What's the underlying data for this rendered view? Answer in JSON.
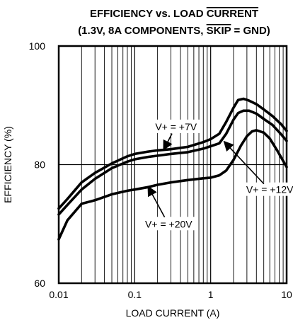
{
  "chart_data": {
    "type": "line",
    "title": {
      "line1_pre": "EFFICIENCY vs. LOAD ",
      "line1_over": "CURRENT",
      "line2_pre": "(1.3V, 8A COMPONENTS, ",
      "line2_over": "SKIP",
      "line2_post": " = GND)"
    },
    "xlabel": "LOAD CURRENT (A)",
    "ylabel": "EFFICIENCY (%)",
    "x_scale": "log",
    "xlim": [
      0.01,
      10
    ],
    "ylim": [
      60,
      100
    ],
    "x_ticks": [
      {
        "value": 0.01,
        "label": "0.01"
      },
      {
        "value": 0.1,
        "label": "0.1"
      },
      {
        "value": 1,
        "label": "1"
      },
      {
        "value": 10,
        "label": "10"
      }
    ],
    "y_ticks": [
      {
        "value": 60,
        "label": "60"
      },
      {
        "value": 80,
        "label": "80"
      },
      {
        "value": 100,
        "label": "100"
      }
    ],
    "grid": "log-x minor gridlines, y=80 major line",
    "series": [
      {
        "name": "V+ = +7V",
        "x": [
          0.01,
          0.013,
          0.02,
          0.03,
          0.05,
          0.08,
          0.1,
          0.15,
          0.2,
          0.3,
          0.5,
          0.8,
          1.0,
          1.3,
          1.6,
          2.0,
          2.3,
          2.7,
          3.2,
          4.0,
          5.0,
          6.5,
          8.5,
          10
        ],
        "y": [
          72.6,
          74.2,
          77.0,
          78.6,
          80.2,
          81.4,
          81.8,
          82.2,
          82.4,
          82.6,
          83.0,
          83.8,
          84.3,
          85.2,
          87.2,
          89.6,
          90.9,
          91.1,
          90.8,
          90.2,
          89.3,
          88.2,
          86.8,
          85.7
        ]
      },
      {
        "name": "",
        "x": [
          0.01,
          0.013,
          0.02,
          0.03,
          0.05,
          0.08,
          0.1,
          0.15,
          0.2,
          0.3,
          0.5,
          0.8,
          1.0,
          1.3,
          1.6,
          2.0,
          2.3,
          2.7,
          3.2,
          4.0,
          5.0,
          6.5,
          8.5,
          10
        ],
        "y": [
          71.6,
          73.2,
          75.8,
          77.6,
          79.4,
          80.5,
          80.9,
          81.3,
          81.5,
          81.8,
          82.1,
          82.7,
          83.1,
          83.6,
          85.2,
          87.6,
          88.7,
          89.1,
          89.1,
          88.6,
          87.7,
          86.7,
          85.1,
          84.0
        ]
      },
      {
        "name": "V+ = +20V",
        "x": [
          0.01,
          0.013,
          0.02,
          0.03,
          0.05,
          0.08,
          0.1,
          0.15,
          0.2,
          0.3,
          0.5,
          0.8,
          1.0,
          1.3,
          1.6,
          2.0,
          2.5,
          3.0,
          3.5,
          4.0,
          5.0,
          6.0,
          7.5,
          10
        ],
        "y": [
          67.4,
          70.6,
          73.4,
          74.0,
          75.0,
          75.6,
          75.8,
          76.2,
          76.6,
          77.0,
          77.4,
          77.7,
          77.8,
          78.2,
          79.0,
          80.8,
          83.2,
          84.8,
          85.6,
          85.8,
          85.4,
          84.4,
          82.4,
          79.6
        ]
      }
    ],
    "annotations": [
      {
        "text": "V+ = +7V",
        "x": 0.35,
        "y": 86.4,
        "arrow_to": [
          0.24,
          82.5
        ]
      },
      {
        "text": "V+ = +12V",
        "x": 6.0,
        "y": 75.8,
        "arrow_to": [
          1.5,
          83.9
        ]
      },
      {
        "text": "V+ = +20V",
        "x": 0.28,
        "y": 70.0,
        "arrow_to": [
          0.15,
          76.3
        ]
      }
    ]
  }
}
